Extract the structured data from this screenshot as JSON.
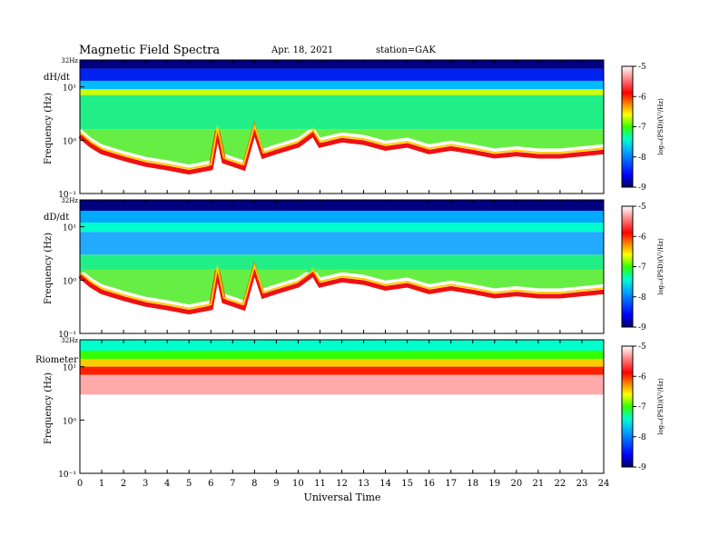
{
  "header": {
    "title": "Magnetic  Field  Spectra",
    "date": "Apr. 18, 2021",
    "station": "station=GAK"
  },
  "chart_data": [
    {
      "type": "heatmap",
      "panel_label": "dH/dt",
      "ylabel": "Frequency  (Hz)",
      "top_label": "32Hz",
      "yscale": "log",
      "ylim": [
        0.1,
        32
      ],
      "yticks": [
        "10⁻¹",
        "10⁰",
        "10¹"
      ],
      "xlim": [
        0,
        24
      ],
      "colorbar": {
        "label": "log₁₀(PSD)(V²/Hz)",
        "ticks": [
          "-5",
          "-6",
          "-7",
          "-8",
          "-9"
        ],
        "range": [
          -9,
          -5
        ],
        "colormap": [
          "#000088",
          "#0000ff",
          "#00aaff",
          "#00ffaa",
          "#66ff00",
          "#ffff00",
          "#ff8800",
          "#ff0000",
          "#ff9999",
          "#ffffff"
        ]
      }
    },
    {
      "type": "heatmap",
      "panel_label": "dD/dt",
      "ylabel": "Frequency  (Hz)",
      "top_label": "32Hz",
      "yscale": "log",
      "ylim": [
        0.1,
        32
      ],
      "yticks": [
        "10⁻¹",
        "10⁰",
        "10¹"
      ],
      "xlim": [
        0,
        24
      ],
      "colorbar": {
        "label": "log₁₀(PSD)(V²/Hz)",
        "ticks": [
          "-5",
          "-6",
          "-7",
          "-8",
          "-9"
        ],
        "range": [
          -9,
          -5
        ]
      }
    },
    {
      "type": "heatmap",
      "panel_label": "Riometer",
      "ylabel": "Frequency  (Hz)",
      "top_label": "32Hz",
      "yscale": "log",
      "ylim": [
        0.1,
        32
      ],
      "yticks": [
        "10⁻¹",
        "10⁰",
        "10¹"
      ],
      "xlim": [
        0,
        24
      ],
      "colorbar": {
        "label": "log₁₀(PSD)(V²/Hz)",
        "ticks": [
          "-5",
          "-6",
          "-7",
          "-8",
          "-9"
        ],
        "range": [
          -9,
          -5
        ]
      }
    }
  ],
  "xaxis": {
    "label": "Universal  Time",
    "ticks": [
      "0",
      "1",
      "2",
      "3",
      "4",
      "5",
      "6",
      "7",
      "8",
      "9",
      "10",
      "11",
      "12",
      "13",
      "14",
      "15",
      "16",
      "17",
      "18",
      "19",
      "20",
      "21",
      "22",
      "23",
      "24"
    ]
  }
}
